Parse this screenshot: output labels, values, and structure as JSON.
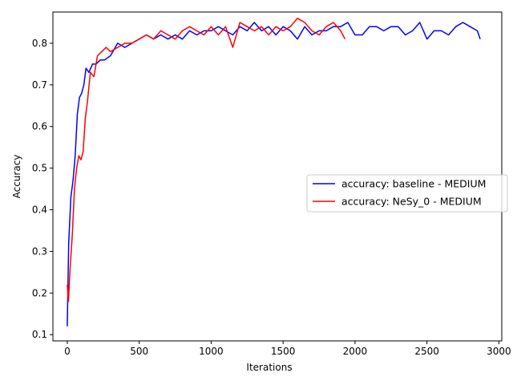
{
  "chart_data": {
    "type": "line",
    "title": "",
    "xlabel": "Iterations",
    "ylabel": "Accuracy",
    "xlim": [
      -100,
      3020
    ],
    "ylim": [
      0.085,
      0.875
    ],
    "xticks": [
      0,
      500,
      1000,
      1500,
      2000,
      2500,
      3000
    ],
    "yticks": [
      0.1,
      0.2,
      0.3,
      0.4,
      0.5,
      0.6,
      0.7,
      0.8
    ],
    "xtick_labels": [
      "0",
      "500",
      "1000",
      "1500",
      "2000",
      "2500",
      "3000"
    ],
    "ytick_labels": [
      "0.1",
      "0.2",
      "0.3",
      "0.4",
      "0.5",
      "0.6",
      "0.7",
      "0.8"
    ],
    "grid": false,
    "legend_position": "center-right",
    "series": [
      {
        "name": "accuracy: baseline - MEDIUM",
        "color": "#0000ff",
        "x": [
          0,
          10,
          25,
          40,
          55,
          70,
          85,
          100,
          115,
          130,
          150,
          175,
          200,
          230,
          260,
          300,
          350,
          400,
          450,
          500,
          550,
          600,
          650,
          700,
          750,
          800,
          850,
          900,
          950,
          1000,
          1050,
          1100,
          1150,
          1200,
          1250,
          1300,
          1350,
          1400,
          1450,
          1500,
          1550,
          1600,
          1650,
          1700,
          1750,
          1800,
          1850,
          1900,
          1950,
          2000,
          2050,
          2100,
          2150,
          2200,
          2250,
          2300,
          2350,
          2400,
          2450,
          2500,
          2550,
          2600,
          2650,
          2700,
          2750,
          2800,
          2850,
          2870
        ],
        "y": [
          0.12,
          0.32,
          0.43,
          0.47,
          0.53,
          0.63,
          0.67,
          0.68,
          0.7,
          0.74,
          0.73,
          0.75,
          0.75,
          0.76,
          0.76,
          0.77,
          0.8,
          0.79,
          0.8,
          0.81,
          0.82,
          0.81,
          0.82,
          0.81,
          0.82,
          0.81,
          0.83,
          0.82,
          0.83,
          0.83,
          0.84,
          0.83,
          0.82,
          0.84,
          0.83,
          0.85,
          0.83,
          0.84,
          0.82,
          0.84,
          0.83,
          0.81,
          0.84,
          0.82,
          0.83,
          0.83,
          0.84,
          0.84,
          0.85,
          0.82,
          0.82,
          0.84,
          0.84,
          0.83,
          0.84,
          0.84,
          0.82,
          0.83,
          0.85,
          0.81,
          0.83,
          0.83,
          0.82,
          0.84,
          0.85,
          0.84,
          0.83,
          0.81
        ]
      },
      {
        "name": "accuracy: NeSy_0 - MEDIUM",
        "color": "#ff0000",
        "x": [
          0,
          8,
          20,
          35,
          50,
          65,
          80,
          95,
          110,
          125,
          140,
          160,
          185,
          210,
          240,
          270,
          300,
          350,
          400,
          450,
          500,
          550,
          600,
          650,
          700,
          750,
          800,
          850,
          900,
          950,
          1000,
          1050,
          1100,
          1150,
          1200,
          1250,
          1300,
          1350,
          1400,
          1450,
          1500,
          1550,
          1600,
          1650,
          1700,
          1750,
          1800,
          1850,
          1900,
          1930
        ],
        "y": [
          0.22,
          0.18,
          0.26,
          0.34,
          0.45,
          0.5,
          0.53,
          0.52,
          0.54,
          0.62,
          0.66,
          0.73,
          0.72,
          0.77,
          0.78,
          0.79,
          0.78,
          0.79,
          0.8,
          0.8,
          0.81,
          0.82,
          0.81,
          0.83,
          0.82,
          0.81,
          0.83,
          0.84,
          0.83,
          0.82,
          0.84,
          0.82,
          0.84,
          0.79,
          0.85,
          0.84,
          0.83,
          0.84,
          0.82,
          0.84,
          0.83,
          0.84,
          0.86,
          0.85,
          0.83,
          0.82,
          0.84,
          0.85,
          0.83,
          0.81
        ]
      }
    ]
  }
}
